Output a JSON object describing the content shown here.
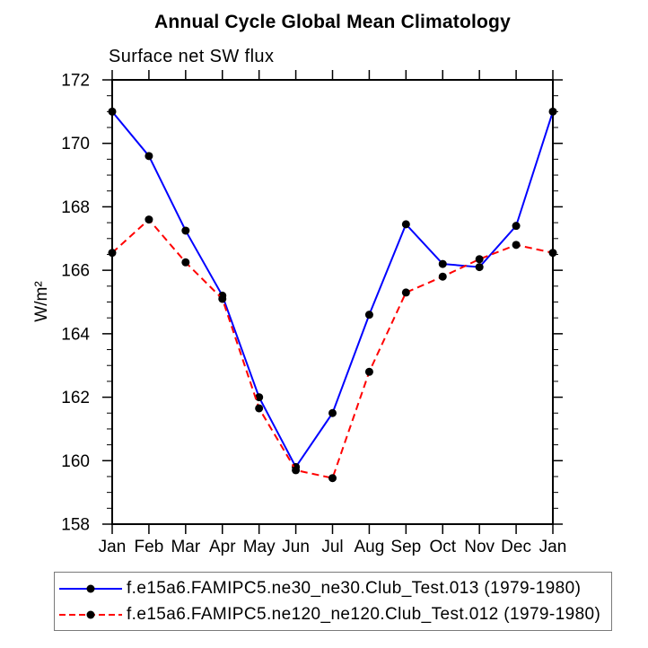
{
  "chart_data": {
    "type": "line",
    "title": "Annual Cycle Global Mean Climatology",
    "subtitle": "Surface net SW flux",
    "ylabel": "W/m²",
    "x_tick_labels": [
      "Jan",
      "Feb",
      "Mar",
      "Apr",
      "May",
      "Jun",
      "Jul",
      "Aug",
      "Sep",
      "Oct",
      "Nov",
      "Dec",
      "Jan"
    ],
    "ylim": [
      158,
      172
    ],
    "y_major_step": 2,
    "y_minor_step": 0.5,
    "grid": false,
    "legend_position": "bottom-box",
    "axis_color": "#000000",
    "marker_color": "#000000",
    "series": [
      {
        "name": "f.e15a6.FAMIPC5.ne30_ne30.Club_Test.013 (1979-1980)",
        "color": "#0000ff",
        "line_style": "solid",
        "marker": "circle",
        "values": [
          171.0,
          169.6,
          167.25,
          165.2,
          162.0,
          159.8,
          161.5,
          164.6,
          167.45,
          166.2,
          166.1,
          167.4,
          171.0
        ]
      },
      {
        "name": "f.e15a6.FAMIPC5.ne120_ne120.Club_Test.012 (1979-1980)",
        "color": "#ff0000",
        "line_style": "dashed",
        "marker": "circle",
        "values": [
          166.55,
          167.6,
          166.25,
          165.1,
          161.65,
          159.7,
          159.45,
          162.8,
          165.3,
          165.8,
          166.35,
          166.8,
          166.55
        ]
      }
    ]
  }
}
